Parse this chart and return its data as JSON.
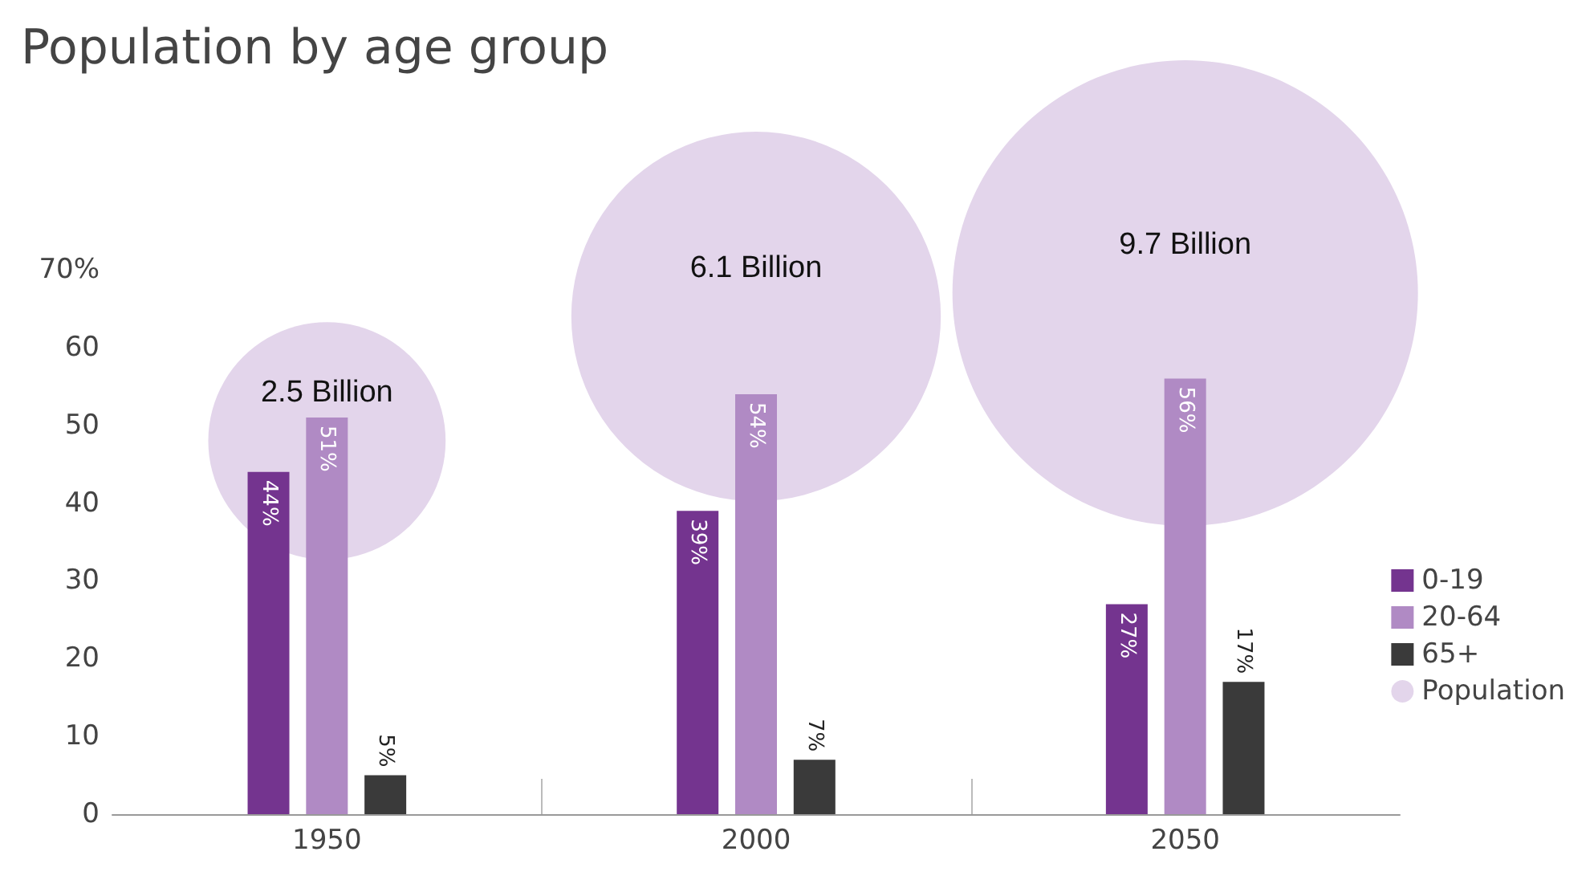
{
  "chart_data": {
    "type": "bar",
    "title": "Population by age group",
    "categories": [
      "1950",
      "2000",
      "2050"
    ],
    "series": [
      {
        "name": "0-19",
        "color": "#74348f",
        "values": [
          44,
          39,
          27
        ],
        "value_labels": [
          "44%",
          "39%",
          "27%"
        ]
      },
      {
        "name": "20-64",
        "color": "#b08ac4",
        "values": [
          51,
          54,
          56
        ],
        "value_labels": [
          "51%",
          "54%",
          "56%"
        ]
      },
      {
        "name": "65+",
        "color": "#3a3a3a",
        "values": [
          5,
          7,
          17
        ],
        "value_labels": [
          "5%",
          "7%",
          "17%"
        ]
      },
      {
        "name": "Population",
        "type": "bubble",
        "color": "#e3d5eb",
        "values": [
          48,
          64,
          67
        ],
        "sizes": [
          0.26,
          0.63,
          1
        ]
      }
    ],
    "annotations": [
      {
        "text": "2.5 Billion",
        "x": "1950",
        "y": 48
      },
      {
        "text": "6.1 Billion",
        "x": "2000",
        "y": 64
      },
      {
        "text": "9.7 Billion",
        "x": "2050",
        "y": 67
      }
    ],
    "ylim": [
      0,
      70
    ],
    "yticks": [
      0,
      10,
      20,
      30,
      40,
      50,
      60,
      {
        "value": 70,
        "label": "70%"
      }
    ],
    "grid": false,
    "legend": "right"
  }
}
